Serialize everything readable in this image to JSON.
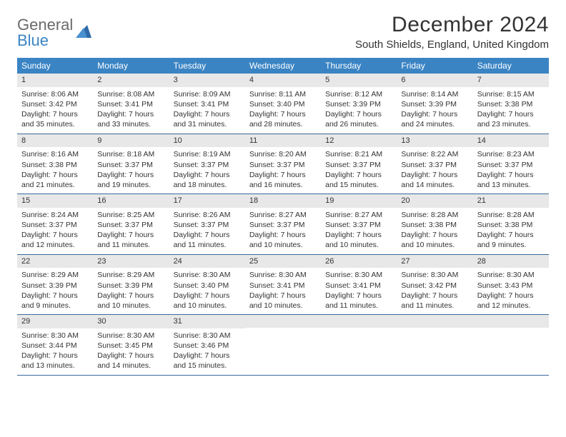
{
  "logo": {
    "line1": "General",
    "line2": "Blue"
  },
  "title": "December 2024",
  "location": "South Shields, England, United Kingdom",
  "colors": {
    "header_bg": "#3a84c4",
    "row_border": "#3a6a9a",
    "daynum_bg": "#e8e8e8",
    "text": "#333333",
    "logo_gray": "#6a6a6a",
    "logo_blue": "#3a84c4"
  },
  "day_headers": [
    "Sunday",
    "Monday",
    "Tuesday",
    "Wednesday",
    "Thursday",
    "Friday",
    "Saturday"
  ],
  "weeks": [
    [
      {
        "n": "1",
        "sr": "Sunrise: 8:06 AM",
        "ss": "Sunset: 3:42 PM",
        "dl1": "Daylight: 7 hours",
        "dl2": "and 35 minutes."
      },
      {
        "n": "2",
        "sr": "Sunrise: 8:08 AM",
        "ss": "Sunset: 3:41 PM",
        "dl1": "Daylight: 7 hours",
        "dl2": "and 33 minutes."
      },
      {
        "n": "3",
        "sr": "Sunrise: 8:09 AM",
        "ss": "Sunset: 3:41 PM",
        "dl1": "Daylight: 7 hours",
        "dl2": "and 31 minutes."
      },
      {
        "n": "4",
        "sr": "Sunrise: 8:11 AM",
        "ss": "Sunset: 3:40 PM",
        "dl1": "Daylight: 7 hours",
        "dl2": "and 28 minutes."
      },
      {
        "n": "5",
        "sr": "Sunrise: 8:12 AM",
        "ss": "Sunset: 3:39 PM",
        "dl1": "Daylight: 7 hours",
        "dl2": "and 26 minutes."
      },
      {
        "n": "6",
        "sr": "Sunrise: 8:14 AM",
        "ss": "Sunset: 3:39 PM",
        "dl1": "Daylight: 7 hours",
        "dl2": "and 24 minutes."
      },
      {
        "n": "7",
        "sr": "Sunrise: 8:15 AM",
        "ss": "Sunset: 3:38 PM",
        "dl1": "Daylight: 7 hours",
        "dl2": "and 23 minutes."
      }
    ],
    [
      {
        "n": "8",
        "sr": "Sunrise: 8:16 AM",
        "ss": "Sunset: 3:38 PM",
        "dl1": "Daylight: 7 hours",
        "dl2": "and 21 minutes."
      },
      {
        "n": "9",
        "sr": "Sunrise: 8:18 AM",
        "ss": "Sunset: 3:37 PM",
        "dl1": "Daylight: 7 hours",
        "dl2": "and 19 minutes."
      },
      {
        "n": "10",
        "sr": "Sunrise: 8:19 AM",
        "ss": "Sunset: 3:37 PM",
        "dl1": "Daylight: 7 hours",
        "dl2": "and 18 minutes."
      },
      {
        "n": "11",
        "sr": "Sunrise: 8:20 AM",
        "ss": "Sunset: 3:37 PM",
        "dl1": "Daylight: 7 hours",
        "dl2": "and 16 minutes."
      },
      {
        "n": "12",
        "sr": "Sunrise: 8:21 AM",
        "ss": "Sunset: 3:37 PM",
        "dl1": "Daylight: 7 hours",
        "dl2": "and 15 minutes."
      },
      {
        "n": "13",
        "sr": "Sunrise: 8:22 AM",
        "ss": "Sunset: 3:37 PM",
        "dl1": "Daylight: 7 hours",
        "dl2": "and 14 minutes."
      },
      {
        "n": "14",
        "sr": "Sunrise: 8:23 AM",
        "ss": "Sunset: 3:37 PM",
        "dl1": "Daylight: 7 hours",
        "dl2": "and 13 minutes."
      }
    ],
    [
      {
        "n": "15",
        "sr": "Sunrise: 8:24 AM",
        "ss": "Sunset: 3:37 PM",
        "dl1": "Daylight: 7 hours",
        "dl2": "and 12 minutes."
      },
      {
        "n": "16",
        "sr": "Sunrise: 8:25 AM",
        "ss": "Sunset: 3:37 PM",
        "dl1": "Daylight: 7 hours",
        "dl2": "and 11 minutes."
      },
      {
        "n": "17",
        "sr": "Sunrise: 8:26 AM",
        "ss": "Sunset: 3:37 PM",
        "dl1": "Daylight: 7 hours",
        "dl2": "and 11 minutes."
      },
      {
        "n": "18",
        "sr": "Sunrise: 8:27 AM",
        "ss": "Sunset: 3:37 PM",
        "dl1": "Daylight: 7 hours",
        "dl2": "and 10 minutes."
      },
      {
        "n": "19",
        "sr": "Sunrise: 8:27 AM",
        "ss": "Sunset: 3:37 PM",
        "dl1": "Daylight: 7 hours",
        "dl2": "and 10 minutes."
      },
      {
        "n": "20",
        "sr": "Sunrise: 8:28 AM",
        "ss": "Sunset: 3:38 PM",
        "dl1": "Daylight: 7 hours",
        "dl2": "and 10 minutes."
      },
      {
        "n": "21",
        "sr": "Sunrise: 8:28 AM",
        "ss": "Sunset: 3:38 PM",
        "dl1": "Daylight: 7 hours",
        "dl2": "and 9 minutes."
      }
    ],
    [
      {
        "n": "22",
        "sr": "Sunrise: 8:29 AM",
        "ss": "Sunset: 3:39 PM",
        "dl1": "Daylight: 7 hours",
        "dl2": "and 9 minutes."
      },
      {
        "n": "23",
        "sr": "Sunrise: 8:29 AM",
        "ss": "Sunset: 3:39 PM",
        "dl1": "Daylight: 7 hours",
        "dl2": "and 10 minutes."
      },
      {
        "n": "24",
        "sr": "Sunrise: 8:30 AM",
        "ss": "Sunset: 3:40 PM",
        "dl1": "Daylight: 7 hours",
        "dl2": "and 10 minutes."
      },
      {
        "n": "25",
        "sr": "Sunrise: 8:30 AM",
        "ss": "Sunset: 3:41 PM",
        "dl1": "Daylight: 7 hours",
        "dl2": "and 10 minutes."
      },
      {
        "n": "26",
        "sr": "Sunrise: 8:30 AM",
        "ss": "Sunset: 3:41 PM",
        "dl1": "Daylight: 7 hours",
        "dl2": "and 11 minutes."
      },
      {
        "n": "27",
        "sr": "Sunrise: 8:30 AM",
        "ss": "Sunset: 3:42 PM",
        "dl1": "Daylight: 7 hours",
        "dl2": "and 11 minutes."
      },
      {
        "n": "28",
        "sr": "Sunrise: 8:30 AM",
        "ss": "Sunset: 3:43 PM",
        "dl1": "Daylight: 7 hours",
        "dl2": "and 12 minutes."
      }
    ],
    [
      {
        "n": "29",
        "sr": "Sunrise: 8:30 AM",
        "ss": "Sunset: 3:44 PM",
        "dl1": "Daylight: 7 hours",
        "dl2": "and 13 minutes."
      },
      {
        "n": "30",
        "sr": "Sunrise: 8:30 AM",
        "ss": "Sunset: 3:45 PM",
        "dl1": "Daylight: 7 hours",
        "dl2": "and 14 minutes."
      },
      {
        "n": "31",
        "sr": "Sunrise: 8:30 AM",
        "ss": "Sunset: 3:46 PM",
        "dl1": "Daylight: 7 hours",
        "dl2": "and 15 minutes."
      },
      {
        "empty": true
      },
      {
        "empty": true
      },
      {
        "empty": true
      },
      {
        "empty": true
      }
    ]
  ]
}
